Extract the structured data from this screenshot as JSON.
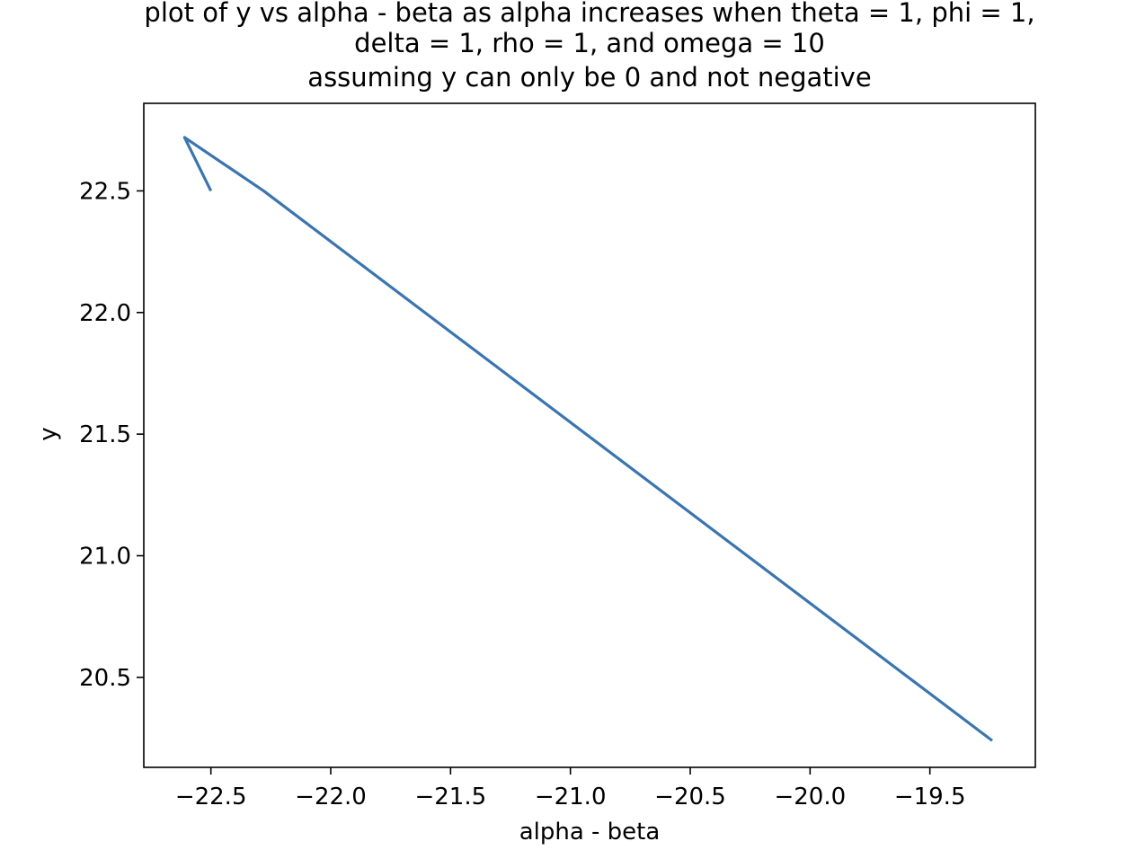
{
  "chart_data": {
    "type": "line",
    "title_lines": [
      "plot of y vs alpha - beta as alpha increases when theta = 1, phi = 1,",
      "delta = 1, rho = 1, and omega = 10",
      "assuming y can only be 0 and not negative"
    ],
    "xlabel": "alpha - beta",
    "ylabel": "y",
    "xlim": [
      -22.78,
      -19.06
    ],
    "ylim": [
      20.13,
      22.86
    ],
    "xticks": [
      -22.5,
      -22.0,
      -21.5,
      -21.0,
      -20.5,
      -20.0,
      -19.5
    ],
    "xtick_labels": [
      "−22.5",
      "−22.0",
      "−21.5",
      "−21.0",
      "−20.5",
      "−20.0",
      "−19.5"
    ],
    "yticks": [
      20.5,
      21.0,
      21.5,
      22.0,
      22.5
    ],
    "ytick_labels": [
      "20.5",
      "21.0",
      "21.5",
      "22.0",
      "22.5"
    ],
    "grid": false,
    "series": [
      {
        "color": "#3b75af",
        "x": [
          -22.5,
          -22.61,
          -22.28,
          -19.24
        ],
        "y": [
          22.5,
          22.72,
          22.5,
          20.24
        ]
      }
    ]
  }
}
